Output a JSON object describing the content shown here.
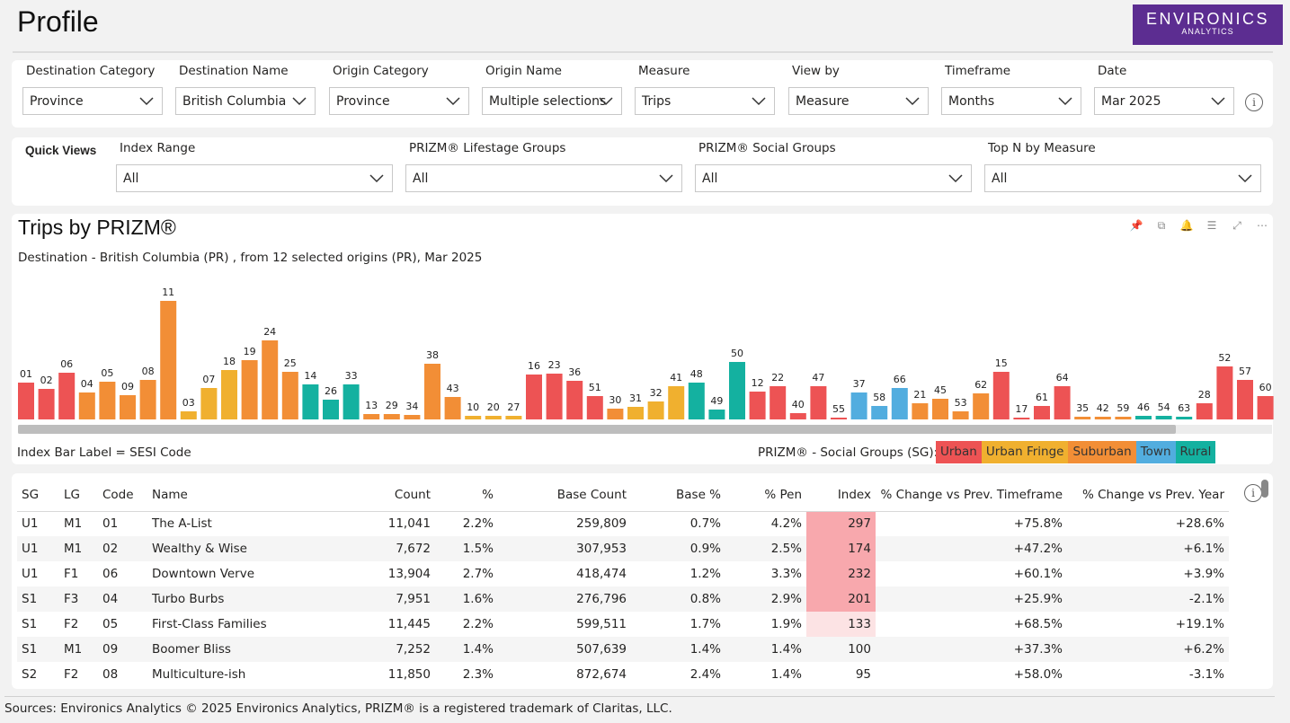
{
  "page": {
    "title": "Profile"
  },
  "logo": {
    "line1": "ENVIRONICS",
    "line2": "ANALYTICS"
  },
  "filters": [
    {
      "label": "Destination Category",
      "value": "Province"
    },
    {
      "label": "Destination Name",
      "value": "British Columbia"
    },
    {
      "label": "Origin Category",
      "value": "Province"
    },
    {
      "label": "Origin Name",
      "value": "Multiple selections"
    },
    {
      "label": "Measure",
      "value": "Trips"
    },
    {
      "label": "View by",
      "value": "Measure"
    },
    {
      "label": "Timeframe",
      "value": "Months"
    },
    {
      "label": "Date",
      "value": "Mar 2025"
    }
  ],
  "quick_views": {
    "title": "Quick Views",
    "filters": [
      {
        "label": "Index Range",
        "value": "All"
      },
      {
        "label": "PRIZM® Lifestage Groups",
        "value": "All"
      },
      {
        "label": "PRIZM® Social Groups",
        "value": "All"
      },
      {
        "label": "Top N by Measure",
        "value": "All"
      }
    ]
  },
  "chart_data": {
    "type": "bar",
    "title": "Trips by PRIZM®",
    "subtitle": "Destination - British Columbia (PR) , from 12 selected origins (PR), Mar 2025",
    "categories": [
      "01",
      "02",
      "06",
      "04",
      "05",
      "09",
      "08",
      "11",
      "03",
      "07",
      "18",
      "19",
      "24",
      "25",
      "14",
      "26",
      "33",
      "13",
      "29",
      "34",
      "38",
      "43",
      "10",
      "20",
      "27",
      "16",
      "23",
      "36",
      "51",
      "30",
      "31",
      "32",
      "41",
      "48",
      "49",
      "50",
      "12",
      "22",
      "40",
      "47",
      "55",
      "37",
      "58",
      "66",
      "21",
      "45",
      "53",
      "62",
      "15",
      "17",
      "61",
      "64",
      "35",
      "42",
      "59",
      "46",
      "54",
      "63",
      "28",
      "52",
      "57",
      "60"
    ],
    "values": [
      41,
      34,
      52,
      30,
      42,
      27,
      44,
      132,
      9,
      35,
      55,
      66,
      88,
      53,
      39,
      22,
      39,
      6,
      6,
      5,
      62,
      25,
      4,
      4,
      4,
      50,
      51,
      43,
      26,
      12,
      14,
      20,
      37,
      41,
      11,
      64,
      31,
      37,
      7,
      37,
      2,
      30,
      15,
      35,
      18,
      23,
      9,
      29,
      53,
      2,
      15,
      37,
      3,
      3,
      3,
      4,
      4,
      3,
      18,
      59,
      44,
      26
    ],
    "groups": [
      "U",
      "U",
      "U",
      "S",
      "S",
      "S",
      "S",
      "S",
      "F",
      "F",
      "F",
      "S",
      "S",
      "S",
      "R",
      "R",
      "R",
      "S",
      "S",
      "S",
      "S",
      "S",
      "F",
      "F",
      "F",
      "U",
      "U",
      "U",
      "U",
      "S",
      "F",
      "F",
      "F",
      "R",
      "R",
      "R",
      "U",
      "U",
      "U",
      "U",
      "U",
      "T",
      "T",
      "T",
      "S",
      "S",
      "S",
      "S",
      "U",
      "U",
      "U",
      "U",
      "S",
      "S",
      "S",
      "R",
      "R",
      "R",
      "U",
      "U",
      "U",
      "U"
    ],
    "group_colors": {
      "U": "#ed5354",
      "F": "#f0b02f",
      "S": "#f28e36",
      "T": "#52addf",
      "R": "#14b1a0"
    },
    "index_label": "Index Bar Label = SESI Code",
    "legend_title": "PRIZM® - Social Groups (SG):",
    "legend": [
      {
        "name": "Urban",
        "color": "#ed5354"
      },
      {
        "name": "Urban Fringe",
        "color": "#f0b02f"
      },
      {
        "name": "Suburban",
        "color": "#f28e36"
      },
      {
        "name": "Town",
        "color": "#52addf"
      },
      {
        "name": "Rural",
        "color": "#14b1a0"
      }
    ]
  },
  "table": {
    "headers": [
      "SG",
      "LG",
      "Code",
      "Name",
      "Count",
      "%",
      "Base Count",
      "Base %",
      "% Pen",
      "Index",
      "% Change vs Prev. Timeframe",
      "% Change vs Prev. Year"
    ],
    "rows": [
      [
        "U1",
        "M1",
        "01",
        "The A-List",
        "11,041",
        "2.2%",
        "259,809",
        "0.7%",
        "4.2%",
        "297",
        "+75.8%",
        "+28.6%"
      ],
      [
        "U1",
        "M1",
        "02",
        "Wealthy & Wise",
        "7,672",
        "1.5%",
        "307,953",
        "0.9%",
        "2.5%",
        "174",
        "+47.2%",
        "+6.1%"
      ],
      [
        "U1",
        "F1",
        "06",
        "Downtown Verve",
        "13,904",
        "2.7%",
        "418,474",
        "1.2%",
        "3.3%",
        "232",
        "+60.1%",
        "+3.9%"
      ],
      [
        "S1",
        "F3",
        "04",
        "Turbo Burbs",
        "7,951",
        "1.6%",
        "276,796",
        "0.8%",
        "2.9%",
        "201",
        "+25.9%",
        "-2.1%"
      ],
      [
        "S1",
        "F2",
        "05",
        "First-Class Families",
        "11,445",
        "2.2%",
        "599,511",
        "1.7%",
        "1.9%",
        "133",
        "+68.5%",
        "+19.1%"
      ],
      [
        "S1",
        "M1",
        "09",
        "Boomer Bliss",
        "7,252",
        "1.4%",
        "507,639",
        "1.4%",
        "1.4%",
        "100",
        "+37.3%",
        "+6.2%"
      ],
      [
        "S2",
        "F2",
        "08",
        "Multiculture-ish",
        "11,850",
        "2.3%",
        "872,674",
        "2.4%",
        "1.4%",
        "95",
        "+58.0%",
        "-3.1%"
      ]
    ]
  },
  "footer": {
    "text": "Sources: Environics Analytics © 2025 Environics Analytics, PRIZM® is a registered trademark of Claritas, LLC."
  }
}
